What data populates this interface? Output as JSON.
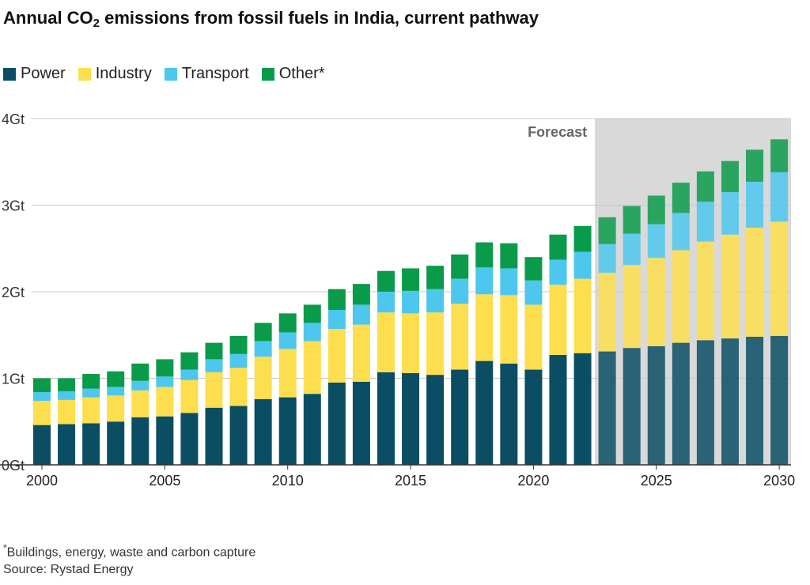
{
  "title_main": "Annual CO",
  "title_sub": "2",
  "title_rest": " emissions from fossil fuels in India, current pathway",
  "footnote_marker": "*",
  "footnote": "Buildings, energy, waste and carbon capture",
  "source": "Source: Rystad Energy",
  "colors": {
    "Power": "#0b4d63",
    "Industry": "#fdde4e",
    "Transport": "#4dc7ee",
    "Other*": "#0a9b4a",
    "forecast_shade": "#d9d9d9",
    "grid": "#c8c8c8"
  },
  "chart_data": {
    "type": "bar",
    "stacked": true,
    "ylim": [
      0,
      4
    ],
    "yticks": [
      "0Gt",
      "1Gt",
      "2Gt",
      "3Gt",
      "4Gt"
    ],
    "xticks": [
      "2000",
      "2005",
      "2010",
      "2015",
      "2020",
      "2025",
      "2030"
    ],
    "forecast_label": "Forecast",
    "forecast_start": 2023,
    "categories": [
      2000,
      2001,
      2002,
      2003,
      2004,
      2005,
      2006,
      2007,
      2008,
      2009,
      2010,
      2011,
      2012,
      2013,
      2014,
      2015,
      2016,
      2017,
      2018,
      2019,
      2020,
      2021,
      2022,
      2023,
      2024,
      2025,
      2026,
      2027,
      2028,
      2029,
      2030
    ],
    "series": [
      {
        "name": "Power",
        "values": [
          0.46,
          0.47,
          0.48,
          0.5,
          0.55,
          0.56,
          0.6,
          0.66,
          0.68,
          0.76,
          0.78,
          0.82,
          0.95,
          0.96,
          1.07,
          1.06,
          1.04,
          1.1,
          1.2,
          1.17,
          1.1,
          1.27,
          1.29,
          1.31,
          1.35,
          1.37,
          1.41,
          1.44,
          1.46,
          1.48,
          1.49
        ]
      },
      {
        "name": "Industry",
        "values": [
          0.28,
          0.28,
          0.3,
          0.3,
          0.31,
          0.34,
          0.38,
          0.41,
          0.44,
          0.49,
          0.56,
          0.61,
          0.62,
          0.66,
          0.69,
          0.69,
          0.72,
          0.76,
          0.77,
          0.79,
          0.75,
          0.81,
          0.86,
          0.91,
          0.96,
          1.02,
          1.07,
          1.14,
          1.2,
          1.26,
          1.32
        ]
      },
      {
        "name": "Transport",
        "values": [
          0.1,
          0.1,
          0.1,
          0.1,
          0.11,
          0.12,
          0.12,
          0.15,
          0.16,
          0.18,
          0.19,
          0.21,
          0.22,
          0.23,
          0.24,
          0.26,
          0.27,
          0.29,
          0.31,
          0.31,
          0.28,
          0.29,
          0.31,
          0.33,
          0.36,
          0.39,
          0.43,
          0.46,
          0.49,
          0.53,
          0.57
        ]
      },
      {
        "name": "Other*",
        "values": [
          0.16,
          0.15,
          0.17,
          0.18,
          0.2,
          0.2,
          0.2,
          0.19,
          0.21,
          0.21,
          0.22,
          0.21,
          0.24,
          0.24,
          0.24,
          0.26,
          0.27,
          0.28,
          0.29,
          0.29,
          0.27,
          0.29,
          0.3,
          0.31,
          0.32,
          0.33,
          0.35,
          0.35,
          0.36,
          0.37,
          0.38
        ]
      }
    ]
  }
}
